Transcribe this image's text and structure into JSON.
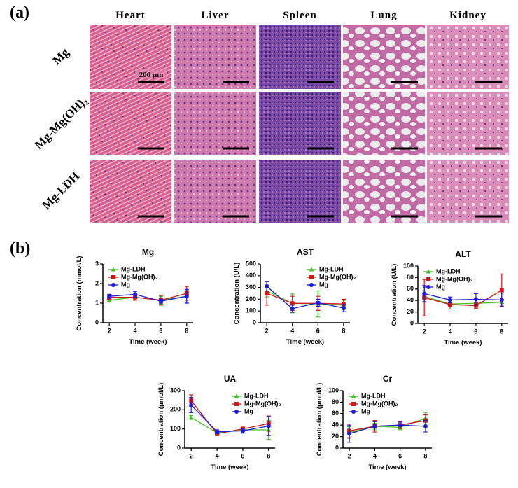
{
  "panel_a": {
    "label": "(a)",
    "columns": [
      "Heart",
      "Liver",
      "Spleen",
      "Lung",
      "Kidney"
    ],
    "rows": [
      "Mg",
      "Mg-Mg(OH)₂",
      "Mg-LDH"
    ],
    "scale_bar": "200 μm"
  },
  "panel_b_label": "(b)",
  "chart_data": [
    {
      "type": "line",
      "title": "Mg",
      "x_label": "Time (week)",
      "y_label": "Concentration (mmol/L)",
      "x": [
        2,
        4,
        6,
        8
      ],
      "xlim": [
        1.5,
        8.5
      ],
      "xticks": [
        2,
        4,
        6,
        8
      ],
      "ylim": [
        0,
        3
      ],
      "yticks": [
        0,
        1,
        2,
        3
      ],
      "legend": "upper left",
      "series": [
        {
          "name": "Mg-LDH",
          "color": "#44c02a",
          "marker": "triangle",
          "values": [
            1.15,
            1.3,
            1.15,
            1.35
          ],
          "errors": [
            0.1,
            0.15,
            0.2,
            0.3
          ]
        },
        {
          "name": "Mg-Mg(OH)₂",
          "color": "#d41515",
          "marker": "square",
          "values": [
            1.3,
            1.3,
            1.15,
            1.5
          ],
          "errors": [
            0.1,
            0.15,
            0.25,
            0.35
          ]
        },
        {
          "name": "Mg",
          "color": "#1c1cd8",
          "marker": "circle",
          "values": [
            1.35,
            1.45,
            1.1,
            1.35
          ],
          "errors": [
            0.1,
            0.15,
            0.1,
            0.35
          ]
        }
      ]
    },
    {
      "type": "line",
      "title": "AST",
      "x_label": "Time (week)",
      "y_label": "Concentration (U/L)",
      "x": [
        2,
        4,
        6,
        8
      ],
      "xlim": [
        1.5,
        8.5
      ],
      "xticks": [
        2,
        4,
        6,
        8
      ],
      "ylim": [
        0,
        500
      ],
      "yticks": [
        0,
        100,
        200,
        300,
        400,
        500
      ],
      "legend": "upper right",
      "series": [
        {
          "name": "Mg-LDH",
          "color": "#44c02a",
          "marker": "triangle",
          "values": [
            270,
            165,
            160,
            150
          ],
          "errors": [
            50,
            80,
            110,
            40
          ]
        },
        {
          "name": "Mg-Mg(OH)₂",
          "color": "#d41515",
          "marker": "square",
          "values": [
            250,
            165,
            165,
            160
          ],
          "errors": [
            100,
            60,
            60,
            40
          ]
        },
        {
          "name": "Mg",
          "color": "#1c1cd8",
          "marker": "circle",
          "values": [
            310,
            120,
            170,
            125
          ],
          "errors": [
            40,
            30,
            30,
            30
          ]
        }
      ]
    },
    {
      "type": "line",
      "title": "ALT",
      "x_label": "Time (week)",
      "y_label": "Concentration (U/L)",
      "x": [
        2,
        4,
        6,
        8
      ],
      "xlim": [
        1.5,
        8.5
      ],
      "xticks": [
        2,
        4,
        6,
        8
      ],
      "ylim": [
        0,
        100
      ],
      "yticks": [
        0,
        20,
        40,
        60,
        80,
        100
      ],
      "legend": "upper left",
      "series": [
        {
          "name": "Mg-LDH",
          "color": "#44c02a",
          "marker": "triangle",
          "values": [
            47,
            34,
            35,
            37
          ],
          "errors": [
            10,
            5,
            6,
            5
          ]
        },
        {
          "name": "Mg-Mg(OH)₂",
          "color": "#d41515",
          "marker": "square",
          "values": [
            45,
            33,
            31,
            58
          ],
          "errors": [
            32,
            8,
            5,
            28
          ]
        },
        {
          "name": "Mg",
          "color": "#1c1cd8",
          "marker": "circle",
          "values": [
            52,
            41,
            42,
            41
          ],
          "errors": [
            14,
            5,
            10,
            12
          ]
        }
      ]
    },
    {
      "type": "line",
      "title": "UA",
      "x_label": "Time (week)",
      "y_label": "Concentration (μmol/L)",
      "x": [
        2,
        4,
        6,
        8
      ],
      "xlim": [
        1.5,
        8.5
      ],
      "xticks": [
        2,
        4,
        6,
        8
      ],
      "ylim": [
        0,
        300
      ],
      "yticks": [
        0,
        100,
        200,
        300
      ],
      "legend": "upper right",
      "series": [
        {
          "name": "Mg-LDH",
          "color": "#44c02a",
          "marker": "triangle",
          "values": [
            160,
            80,
            95,
            95
          ],
          "errors": [
            10,
            10,
            10,
            50
          ]
        },
        {
          "name": "Mg-Mg(OH)₂",
          "color": "#d41515",
          "marker": "square",
          "values": [
            248,
            75,
            100,
            128
          ],
          "errors": [
            30,
            10,
            10,
            40
          ]
        },
        {
          "name": "Mg",
          "color": "#1c1cd8",
          "marker": "circle",
          "values": [
            225,
            85,
            90,
            115
          ],
          "errors": [
            40,
            10,
            12,
            50
          ]
        }
      ]
    },
    {
      "type": "line",
      "title": "Cr",
      "x_label": "Time (week)",
      "y_label": "Concentration (μmol/L)",
      "x": [
        2,
        4,
        6,
        8
      ],
      "xlim": [
        1.5,
        8.5
      ],
      "xticks": [
        2,
        4,
        6,
        8
      ],
      "ylim": [
        0,
        100
      ],
      "yticks": [
        0,
        20,
        40,
        60,
        80,
        100
      ],
      "legend": "upper left",
      "series": [
        {
          "name": "Mg-LDH",
          "color": "#44c02a",
          "marker": "triangle",
          "values": [
            27,
            38,
            36,
            52
          ],
          "errors": [
            10,
            5,
            4,
            10
          ]
        },
        {
          "name": "Mg-Mg(OH)₂",
          "color": "#d41515",
          "marker": "square",
          "values": [
            30,
            38,
            40,
            48
          ],
          "errors": [
            12,
            10,
            6,
            10
          ]
        },
        {
          "name": "Mg",
          "color": "#1c1cd8",
          "marker": "circle",
          "values": [
            25,
            38,
            40,
            38
          ],
          "errors": [
            15,
            8,
            5,
            10
          ]
        }
      ]
    }
  ]
}
